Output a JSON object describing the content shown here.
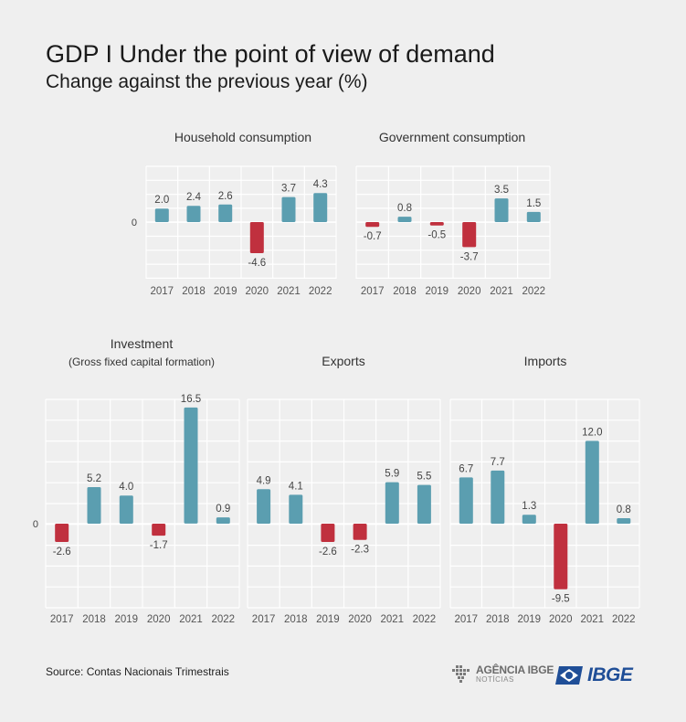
{
  "header": {
    "title": "GDP I Under the point of view of demand",
    "subtitle": "Change against the previous year (%)"
  },
  "footer": {
    "source": "Source: Contas Nacionais Trimestrais",
    "agencia_line1": "AGÊNCIA IBGE",
    "agencia_line2": "NOTÍCIAS",
    "ibge": "IBGE"
  },
  "colors": {
    "positive": "#5b9eb0",
    "negative": "#c0303e",
    "grid": "#ffffff",
    "background": "#efefef"
  },
  "chart_data": [
    {
      "type": "bar",
      "title": "Household consumption",
      "categories": [
        "2017",
        "2018",
        "2019",
        "2020",
        "2021",
        "2022"
      ],
      "values": [
        2.0,
        2.4,
        2.6,
        -4.6,
        3.7,
        4.3
      ],
      "labels": [
        "2.0",
        "2.4",
        "2.6",
        "-4.6",
        "3.7",
        "4.3"
      ],
      "zero_label": "0",
      "grid": true
    },
    {
      "type": "bar",
      "title": "Government consumption",
      "categories": [
        "2017",
        "2018",
        "2019",
        "2020",
        "2021",
        "2022"
      ],
      "values": [
        -0.7,
        0.8,
        -0.5,
        -3.7,
        3.5,
        1.5
      ],
      "labels": [
        "-0.7",
        "0.8",
        "-0.5",
        "-3.7",
        "3.5",
        "1.5"
      ],
      "grid": true
    },
    {
      "type": "bar",
      "title": "Investment",
      "subtitle": "(Gross fixed capital formation)",
      "categories": [
        "2017",
        "2018",
        "2019",
        "2020",
        "2021",
        "2022"
      ],
      "values": [
        -2.6,
        5.2,
        4.0,
        -1.7,
        16.5,
        0.9
      ],
      "labels": [
        "-2.6",
        "5.2",
        "4.0",
        "-1.7",
        "16.5",
        "0.9"
      ],
      "zero_label": "0",
      "grid": true
    },
    {
      "type": "bar",
      "title": "Exports",
      "categories": [
        "2017",
        "2018",
        "2019",
        "2020",
        "2021",
        "2022"
      ],
      "values": [
        4.9,
        4.1,
        -2.6,
        -2.3,
        5.9,
        5.5
      ],
      "labels": [
        "4.9",
        "4.1",
        "-2.6",
        "-2.3",
        "5.9",
        "5.5"
      ],
      "grid": true
    },
    {
      "type": "bar",
      "title": "Imports",
      "categories": [
        "2017",
        "2018",
        "2019",
        "2020",
        "2021",
        "2022"
      ],
      "values": [
        6.7,
        7.7,
        1.3,
        -9.5,
        12.0,
        0.8
      ],
      "labels": [
        "6.7",
        "7.7",
        "1.3",
        "-9.5",
        "12.0",
        "0.8"
      ],
      "grid": true
    }
  ]
}
